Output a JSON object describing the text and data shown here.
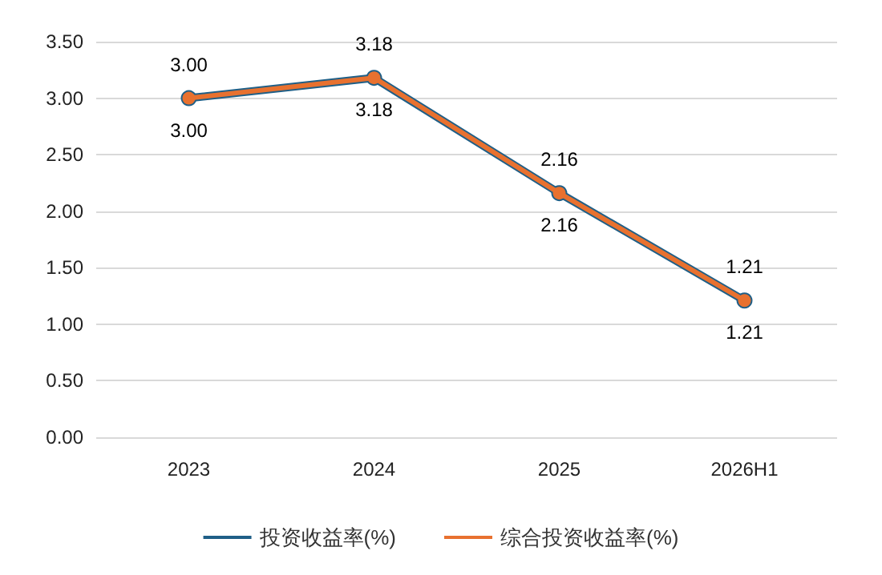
{
  "chart_data": {
    "type": "line",
    "categories": [
      "2023",
      "2024",
      "2025",
      "2026H1"
    ],
    "series": [
      {
        "name": "投资收益率(%)",
        "color": "#1f5f87",
        "values": [
          3.0,
          3.18,
          2.16,
          1.21
        ],
        "value_labels": [
          "3.00",
          "3.18",
          "2.16",
          "1.21"
        ]
      },
      {
        "name": "综合投资收益率(%)",
        "color": "#e8712f",
        "values": [
          3.0,
          3.18,
          2.16,
          1.21
        ],
        "value_labels": [
          "3.00",
          "3.18",
          "2.16",
          "1.21"
        ]
      }
    ],
    "ylim": [
      0,
      3.5
    ],
    "yticks": [
      {
        "value": 0,
        "label": "0.00"
      },
      {
        "value": 0.5,
        "label": "0.50"
      },
      {
        "value": 1,
        "label": "1.00"
      },
      {
        "value": 1.5,
        "label": "1.50"
      },
      {
        "value": 2,
        "label": "2.00"
      },
      {
        "value": 2.5,
        "label": "2.50"
      },
      {
        "value": 3,
        "label": "3.00"
      },
      {
        "value": 3.5,
        "label": "3.50"
      }
    ],
    "grid": "y",
    "legend": "bottom",
    "marker": "circle",
    "line_style": "solid"
  }
}
